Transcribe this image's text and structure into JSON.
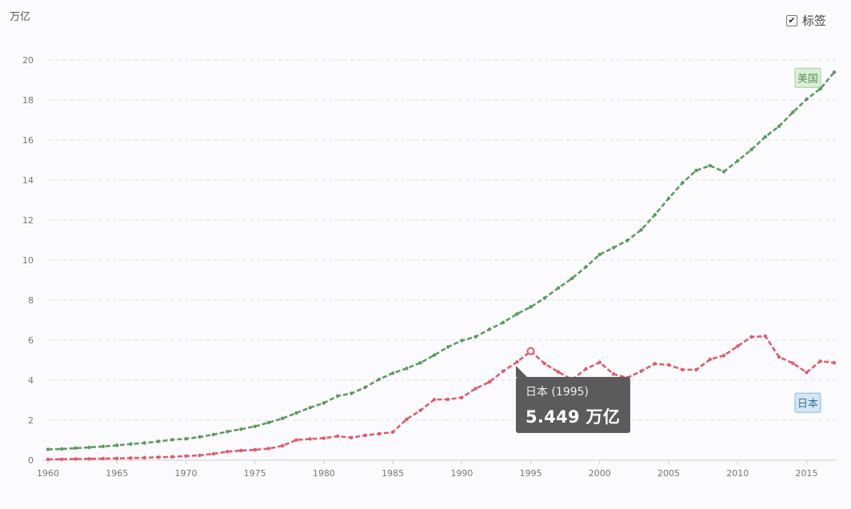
{
  "unit_label": "万亿",
  "labels_toggle": {
    "checked": true,
    "check_glyph": "✔",
    "label": "标签"
  },
  "tooltip": {
    "title": "日本 (1995)",
    "value": "5.449 万亿"
  },
  "colors": {
    "us": "#5a9a5e",
    "japan": "#e0596b",
    "us_label_bg": "#dcefd9",
    "japan_label_bg": "#d3e6f5"
  },
  "chart_data": {
    "type": "line",
    "title": "",
    "xlabel": "",
    "ylabel": "万亿",
    "xlim": [
      1960,
      2017
    ],
    "ylim": [
      0,
      20
    ],
    "x_ticks": [
      1960,
      1965,
      1970,
      1975,
      1980,
      1985,
      1990,
      1995,
      2000,
      2005,
      2010,
      2015
    ],
    "y_ticks": [
      0,
      2,
      4,
      6,
      8,
      10,
      12,
      14,
      16,
      18,
      20
    ],
    "grid": true,
    "x": [
      1960,
      1961,
      1962,
      1963,
      1964,
      1965,
      1966,
      1967,
      1968,
      1969,
      1970,
      1971,
      1972,
      1973,
      1974,
      1975,
      1976,
      1977,
      1978,
      1979,
      1980,
      1981,
      1982,
      1983,
      1984,
      1985,
      1986,
      1987,
      1988,
      1989,
      1990,
      1991,
      1992,
      1993,
      1994,
      1995,
      1996,
      1997,
      1998,
      1999,
      2000,
      2001,
      2002,
      2003,
      2004,
      2005,
      2006,
      2007,
      2008,
      2009,
      2010,
      2011,
      2012,
      2013,
      2014,
      2015,
      2016,
      2017
    ],
    "series": [
      {
        "name": "美国",
        "values": [
          0.54,
          0.56,
          0.6,
          0.64,
          0.69,
          0.74,
          0.81,
          0.86,
          0.94,
          1.02,
          1.07,
          1.16,
          1.28,
          1.43,
          1.55,
          1.69,
          1.88,
          2.09,
          2.36,
          2.63,
          2.86,
          3.21,
          3.34,
          3.64,
          4.04,
          4.35,
          4.59,
          4.87,
          5.25,
          5.66,
          5.98,
          6.17,
          6.54,
          6.88,
          7.31,
          7.66,
          8.1,
          8.61,
          9.09,
          9.66,
          10.28,
          10.62,
          10.98,
          11.51,
          12.27,
          13.09,
          13.86,
          14.48,
          14.72,
          14.42,
          14.96,
          15.52,
          16.16,
          16.69,
          17.39,
          18.04,
          18.57,
          19.39
        ]
      },
      {
        "name": "日本",
        "values": [
          0.04,
          0.05,
          0.06,
          0.07,
          0.08,
          0.09,
          0.11,
          0.12,
          0.15,
          0.17,
          0.21,
          0.24,
          0.32,
          0.43,
          0.48,
          0.52,
          0.58,
          0.72,
          1.01,
          1.06,
          1.1,
          1.2,
          1.13,
          1.24,
          1.32,
          1.4,
          2.05,
          2.49,
          3.03,
          3.04,
          3.13,
          3.58,
          3.91,
          4.45,
          4.91,
          5.449,
          4.83,
          4.41,
          4.03,
          4.56,
          4.89,
          4.3,
          4.12,
          4.45,
          4.82,
          4.76,
          4.53,
          4.52,
          5.04,
          5.23,
          5.7,
          6.16,
          6.2,
          5.16,
          4.85,
          4.39,
          4.95,
          4.87
        ]
      }
    ],
    "highlight": {
      "series": "日本",
      "x": 1995,
      "y": 5.449
    }
  }
}
